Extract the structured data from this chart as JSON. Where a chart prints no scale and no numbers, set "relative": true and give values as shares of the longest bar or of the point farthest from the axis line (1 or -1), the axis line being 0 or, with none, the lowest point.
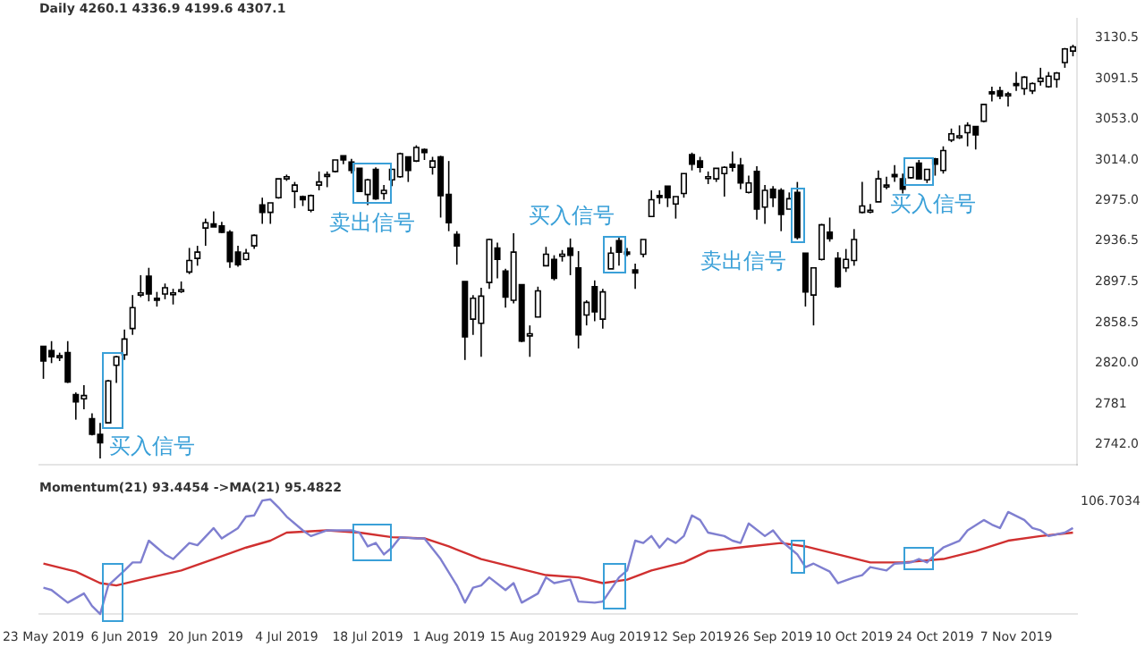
{
  "chart_data": [
    {
      "type": "candlestick",
      "title": "Daily 4260.1 4336.9 4199.6 4307.1",
      "ohlc": [
        [
          2836,
          2836,
          2805,
          2822
        ],
        [
          2832,
          2841,
          2820,
          2826
        ],
        [
          2826,
          2830,
          2822,
          2827
        ],
        [
          2830,
          2841,
          2801,
          2802
        ],
        [
          2790,
          2792,
          2766,
          2783
        ],
        [
          2786,
          2799,
          2776,
          2789
        ],
        [
          2767,
          2772,
          2751,
          2752
        ],
        [
          2752,
          2763,
          2729,
          2744
        ],
        [
          2763,
          2804,
          2763,
          2803
        ],
        [
          2818,
          2827,
          2801,
          2826
        ],
        [
          2828,
          2852,
          2823,
          2843
        ],
        [
          2853,
          2885,
          2847,
          2873
        ],
        [
          2885,
          2904,
          2883,
          2887
        ],
        [
          2903,
          2911,
          2879,
          2886
        ],
        [
          2882,
          2888,
          2874,
          2880
        ],
        [
          2886,
          2896,
          2881,
          2892
        ],
        [
          2887,
          2891,
          2876,
          2887
        ],
        [
          2889,
          2898,
          2887,
          2890
        ],
        [
          2907,
          2930,
          2905,
          2918
        ],
        [
          2920,
          2932,
          2913,
          2926
        ],
        [
          2949,
          2958,
          2932,
          2954
        ],
        [
          2953,
          2965,
          2950,
          2950
        ],
        [
          2951,
          2955,
          2944,
          2945
        ],
        [
          2945,
          2947,
          2911,
          2917
        ],
        [
          2926,
          2932,
          2912,
          2914
        ],
        [
          2919,
          2929,
          2918,
          2925
        ],
        [
          2932,
          2943,
          2929,
          2942
        ],
        [
          2971,
          2978,
          2953,
          2964
        ],
        [
          2964,
          2973,
          2953,
          2973
        ],
        [
          2978,
          2996,
          2977,
          2996
        ],
        [
          2996,
          3000,
          2994,
          2998
        ],
        [
          2984,
          2993,
          2968,
          2990
        ],
        [
          2979,
          2980,
          2970,
          2976
        ],
        [
          2966,
          2981,
          2964,
          2980
        ],
        [
          2990,
          3003,
          2985,
          2993
        ],
        [
          2999,
          3003,
          2988,
          3000
        ],
        [
          3003,
          3014,
          3002,
          3014
        ],
        [
          3018,
          3018,
          3010,
          3014
        ],
        [
          3012,
          3015,
          3001,
          3004
        ],
        [
          3006,
          3006,
          2984,
          2984
        ],
        [
          2981,
          2996,
          2971,
          2995
        ],
        [
          3005,
          3007,
          2976,
          2977
        ],
        [
          2982,
          2990,
          2976,
          2985
        ],
        [
          2995,
          3005,
          2989,
          3005
        ],
        [
          2998,
          3021,
          2997,
          3020
        ],
        [
          3017,
          3017,
          2993,
          3004
        ],
        [
          3013,
          3028,
          3012,
          3026
        ],
        [
          3024,
          3025,
          3014,
          3021
        ],
        [
          3007,
          3017,
          3000,
          3013
        ],
        [
          3017,
          3018,
          2959,
          2980
        ],
        [
          2981,
          3013,
          2946,
          2954
        ],
        [
          2943,
          2946,
          2914,
          2932
        ],
        [
          2898,
          2898,
          2823,
          2845
        ],
        [
          2862,
          2885,
          2847,
          2882
        ],
        [
          2858,
          2892,
          2826,
          2884
        ],
        [
          2897,
          2939,
          2891,
          2938
        ],
        [
          2930,
          2935,
          2901,
          2919
        ],
        [
          2908,
          2910,
          2873,
          2883
        ],
        [
          2880,
          2944,
          2877,
          2926
        ],
        [
          2895,
          2895,
          2840,
          2841
        ],
        [
          2846,
          2856,
          2826,
          2848
        ],
        [
          2864,
          2893,
          2864,
          2889
        ],
        [
          2913,
          2931,
          2913,
          2924
        ],
        [
          2919,
          2923,
          2899,
          2901
        ],
        [
          2922,
          2928,
          2917,
          2924
        ],
        [
          2930,
          2939,
          2904,
          2923
        ],
        [
          2911,
          2927,
          2834,
          2847
        ],
        [
          2866,
          2880,
          2856,
          2878
        ],
        [
          2893,
          2899,
          2860,
          2869
        ],
        [
          2862,
          2891,
          2853,
          2888
        ],
        [
          2910,
          2931,
          2910,
          2925
        ],
        [
          2937,
          2940,
          2913,
          2926
        ],
        [
          2926,
          2930,
          2922,
          2924
        ],
        [
          2909,
          2915,
          2891,
          2906
        ],
        [
          2924,
          2938,
          2921,
          2938
        ],
        [
          2960,
          2985,
          2960,
          2976
        ],
        [
          2980,
          2985,
          2972,
          2979
        ],
        [
          2989,
          2989,
          2969,
          2978
        ],
        [
          2972,
          2979,
          2958,
          2979
        ],
        [
          2982,
          3001,
          2978,
          3001
        ],
        [
          3019,
          3021,
          3004,
          3010
        ],
        [
          3013,
          3017,
          3002,
          3007
        ],
        [
          2997,
          3003,
          2991,
          2998
        ],
        [
          2996,
          3006,
          2993,
          3006
        ],
        [
          3001,
          3008,
          2979,
          3007
        ],
        [
          3010,
          3022,
          3003,
          3007
        ],
        [
          3009,
          3016,
          2986,
          2992
        ],
        [
          2983,
          2999,
          2982,
          2992
        ],
        [
          3003,
          3008,
          2957,
          2967
        ],
        [
          2969,
          2990,
          2953,
          2985
        ],
        [
          2986,
          2989,
          2969,
          2978
        ],
        [
          2985,
          2987,
          2946,
          2962
        ],
        [
          2967,
          2983,
          2967,
          2977
        ],
        [
          2983,
          2993,
          2938,
          2940
        ],
        [
          2925,
          2925,
          2874,
          2888
        ],
        [
          2885,
          2911,
          2856,
          2911
        ],
        [
          2919,
          2953,
          2918,
          2952
        ],
        [
          2945,
          2959,
          2936,
          2939
        ],
        [
          2920,
          2926,
          2892,
          2893
        ],
        [
          2911,
          2929,
          2907,
          2919
        ],
        [
          2918,
          2948,
          2913,
          2938
        ],
        [
          2964,
          2993,
          2963,
          2970
        ],
        [
          2965,
          2972,
          2963,
          2966
        ],
        [
          2974,
          3004,
          2974,
          2996
        ],
        [
          2990,
          2998,
          2986,
          2990
        ],
        [
          3000,
          3009,
          2993,
          2998
        ],
        [
          2996,
          3001,
          2982,
          2986
        ],
        [
          2997,
          3007,
          2996,
          3007
        ],
        [
          3011,
          3014,
          2996,
          2996
        ],
        [
          2995,
          3005,
          2992,
          3005
        ],
        [
          3015,
          3016,
          2999,
          3010
        ],
        [
          3004,
          3027,
          3001,
          3023
        ],
        [
          3033,
          3044,
          3031,
          3039
        ],
        [
          3036,
          3047,
          3034,
          3037
        ],
        [
          3040,
          3050,
          3027,
          3047
        ],
        [
          3046,
          3046,
          3024,
          3038
        ],
        [
          3051,
          3067,
          3050,
          3067
        ],
        [
          3079,
          3084,
          3070,
          3078
        ],
        [
          3080,
          3084,
          3072,
          3075
        ],
        [
          3076,
          3079,
          3065,
          3077
        ],
        [
          3087,
          3098,
          3080,
          3085
        ],
        [
          3082,
          3094,
          3076,
          3093
        ],
        [
          3080,
          3088,
          3077,
          3087
        ],
        [
          3089,
          3102,
          3085,
          3092
        ],
        [
          3084,
          3098,
          3083,
          3094
        ],
        [
          3091,
          3098,
          3083,
          3097
        ],
        [
          3107,
          3121,
          3102,
          3120
        ],
        [
          3118,
          3124,
          3113,
          3122
        ]
      ],
      "ylim": [
        2723,
        3149
      ],
      "yticks": [
        {
          "value": 2742,
          "label": "2742.0"
        },
        2781.0,
        {
          "value": 2820,
          "label": "2820.0"
        },
        2858.5,
        2897.5,
        2936.5,
        {
          "value": 2975,
          "label": "2975.0"
        },
        {
          "value": 3014,
          "label": "3014.0"
        },
        {
          "value": 3053,
          "label": "3053.0"
        },
        3091.5,
        3130.5
      ],
      "tick_labels": "y",
      "annotations": [
        "买入信号",
        "卖出信号",
        "买入信号",
        "卖出信号",
        "买入信号"
      ]
    },
    {
      "type": "line",
      "title": "Momentum(21) 93.4454 ->MA(21) 95.4822",
      "relative": true,
      "tick_labels": "x",
      "categories": [
        "23 May 2019",
        null,
        null,
        null,
        null,
        null,
        null,
        null,
        null,
        null,
        "6 Jun 2019",
        null,
        null,
        null,
        null,
        null,
        null,
        null,
        null,
        null,
        "20 Jun 2019",
        null,
        null,
        null,
        null,
        null,
        null,
        null,
        null,
        null,
        "4 Jul 2019",
        null,
        null,
        null,
        null,
        null,
        null,
        null,
        null,
        null,
        "18 Jul 2019",
        null,
        null,
        null,
        null,
        null,
        null,
        null,
        null,
        null,
        "1 Aug 2019",
        null,
        null,
        null,
        null,
        null,
        null,
        null,
        null,
        null,
        "15 Aug 2019",
        null,
        null,
        null,
        null,
        null,
        null,
        null,
        null,
        null,
        "29 Aug 2019",
        null,
        null,
        null,
        null,
        null,
        null,
        null,
        null,
        null,
        "12 Sep 2019",
        null,
        null,
        null,
        null,
        null,
        null,
        null,
        null,
        null,
        "26 Sep 2019",
        null,
        null,
        null,
        null,
        null,
        null,
        null,
        null,
        null,
        "10 Oct 2019",
        null,
        null,
        null,
        null,
        null,
        null,
        null,
        null,
        null,
        "24 Oct 2019",
        null,
        null,
        null,
        null,
        null,
        null,
        null,
        null,
        null,
        "7 Nov 2019",
        null,
        null,
        null,
        null,
        null,
        null,
        null
      ],
      "series": [
        {
          "color": "#7f7fd0",
          "values": [
            0.23,
            0.21,
            null,
            0.1,
            null,
            0.18,
            0.07,
            0,
            0.25,
            null,
            0.38,
            0.45,
            0.45,
            0.64,
            0.58,
            0.52,
            0.48,
            null,
            0.62,
            0.6,
            null,
            0.75,
            0.66,
            null,
            0.75,
            0.85,
            0.86,
            0.99,
            1,
            0.93,
            0.85,
            null,
            0.73,
            0.68,
            null,
            0.73,
            0.73,
            null,
            0.73,
            0.71,
            0.59,
            0.62,
            0.52,
            0.58,
            0.67,
            null,
            0.66,
            0.66,
            null,
            0.48,
            null,
            0.25,
            0.1,
            0.23,
            0.25,
            0.32,
            null,
            0.21,
            0.27,
            0.1,
            null,
            0.18,
            0.32,
            0.27,
            null,
            0.3,
            0.11,
            null,
            0.1,
            0.11,
            null,
            0.32,
            0.38,
            0.64,
            0.62,
            0.68,
            0.58,
            0.66,
            0.62,
            0.68,
            0.86,
            0.82,
            0.71,
            null,
            0.68,
            0.64,
            0.62,
            0.79,
            null,
            0.68,
            0.73,
            0.64,
            0.58,
            0.52,
            0.41,
            0.44,
            null,
            0.37,
            0.27,
            null,
            0.32,
            0.34,
            0.41,
            null,
            0.38,
            0.44,
            null,
            0.45,
            0.48,
            0.45,
            0.52,
            0.58,
            null,
            0.64,
            0.73,
            null,
            0.82,
            0.78,
            0.75,
            0.89,
            null,
            0.82,
            0.75,
            0.73,
            0.68,
            null,
            0.71,
            0.75
          ]
        },
        {
          "color": "#d03030",
          "values": [
            0.44,
            null,
            null,
            null,
            0.37,
            null,
            null,
            0.27,
            null,
            0.25,
            null,
            null,
            0.3,
            null,
            null,
            null,
            null,
            0.38,
            null,
            null,
            null,
            0.48,
            null,
            null,
            null,
            0.58,
            null,
            null,
            0.64,
            null,
            0.71,
            null,
            null,
            null,
            null,
            0.73,
            null,
            null,
            null,
            0.71,
            null,
            null,
            null,
            0.67,
            null,
            null,
            null,
            0.66,
            null,
            null,
            0.59,
            null,
            null,
            null,
            0.48,
            null,
            null,
            null,
            0.41,
            null,
            null,
            null,
            0.34,
            null,
            null,
            null,
            0.32,
            null,
            null,
            0.27,
            null,
            null,
            0.3,
            null,
            null,
            0.38,
            null,
            null,
            null,
            0.45,
            null,
            null,
            0.55,
            null,
            null,
            null,
            null,
            0.59,
            null,
            null,
            null,
            0.62,
            null,
            null,
            0.59,
            null,
            null,
            null,
            0.52,
            null,
            null,
            null,
            0.45,
            null,
            null,
            null,
            0.45,
            null,
            null,
            null,
            null,
            0.48,
            null,
            null,
            null,
            0.55,
            null,
            null,
            null,
            0.64,
            null,
            null,
            null,
            0.68,
            null,
            null,
            null,
            0.71
          ]
        }
      ],
      "annotations": [
        "106.7034"
      ]
    }
  ]
}
